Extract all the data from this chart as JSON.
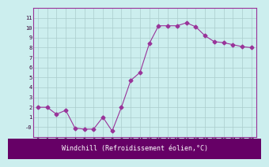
{
  "title": "",
  "xlabel": "Windchill (Refroidissement éolien,°C)",
  "x": [
    0,
    1,
    2,
    3,
    4,
    5,
    6,
    7,
    8,
    9,
    10,
    11,
    12,
    13,
    14,
    15,
    16,
    17,
    18,
    19,
    20,
    21,
    22,
    23
  ],
  "y": [
    2.0,
    2.0,
    1.3,
    1.7,
    -0.1,
    -0.2,
    -0.2,
    1.0,
    -0.4,
    2.0,
    4.7,
    5.5,
    8.4,
    10.2,
    10.2,
    10.2,
    10.5,
    10.1,
    9.2,
    8.6,
    8.5,
    8.3,
    8.1,
    8.0
  ],
  "line_color": "#993399",
  "marker": "D",
  "marker_size": 2.5,
  "bg_color": "#cceeee",
  "grid_color": "#aacccc",
  "ylim": [
    -1,
    12
  ],
  "xlim": [
    -0.5,
    23.5
  ],
  "yticks": [
    0,
    1,
    2,
    3,
    4,
    5,
    6,
    7,
    8,
    9,
    10,
    11
  ],
  "ytick_labels": [
    "-0",
    "1",
    "2",
    "3",
    "4",
    "5",
    "6",
    "7",
    "8",
    "9",
    "10",
    "11"
  ],
  "xticks": [
    0,
    1,
    2,
    3,
    4,
    5,
    6,
    7,
    8,
    9,
    10,
    11,
    12,
    13,
    14,
    15,
    16,
    17,
    18,
    19,
    20,
    21,
    22,
    23
  ],
  "tick_label_fontsize": 5.0,
  "xlabel_fontsize": 6.0,
  "axis_label_color": "#330033",
  "spine_color": "#993399",
  "xlabel_bg": "#660066",
  "xlabel_fg": "#ffffff"
}
